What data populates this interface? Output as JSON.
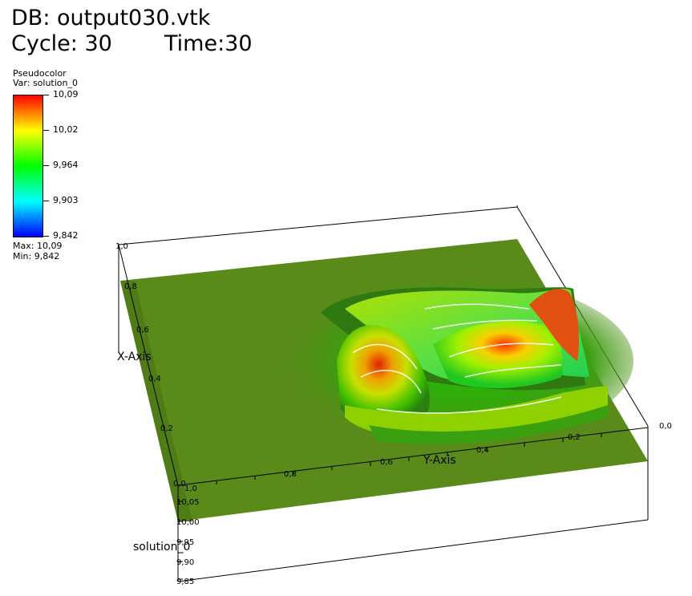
{
  "header": {
    "db_label": "DB: output030.vtk",
    "cycle_label": "Cycle: 30",
    "time_label": "Time:30"
  },
  "legend": {
    "title": "Pseudocolor",
    "var_label": "Var: solution_0",
    "ticks": [
      "10,09",
      "10,02",
      "9,964",
      "9,903",
      "9,842"
    ],
    "max_label": "Max:  10,09",
    "min_label": "Min:  9,842",
    "colors": [
      "#ff0000",
      "#ffff00",
      "#00ff00",
      "#00ffff",
      "#0000ff"
    ]
  },
  "axes": {
    "x_axis_label": "X-Axis",
    "y_axis_label": "Y-Axis",
    "z_axis_label": "solution_0",
    "x_ticks": [
      "1,0",
      "0,8",
      "0,6",
      "0,4",
      "0,2",
      "0,0"
    ],
    "y_ticks": [
      "1,0",
      "0,8",
      "0,6",
      "0,4",
      "0,2",
      "0,0"
    ],
    "z_ticks": [
      "10,05",
      "10,00",
      "9,95",
      "9,90",
      "9,85"
    ]
  },
  "colors": {
    "surface_base": "#5a8a1a",
    "surface_dark": "#3f6e12"
  }
}
